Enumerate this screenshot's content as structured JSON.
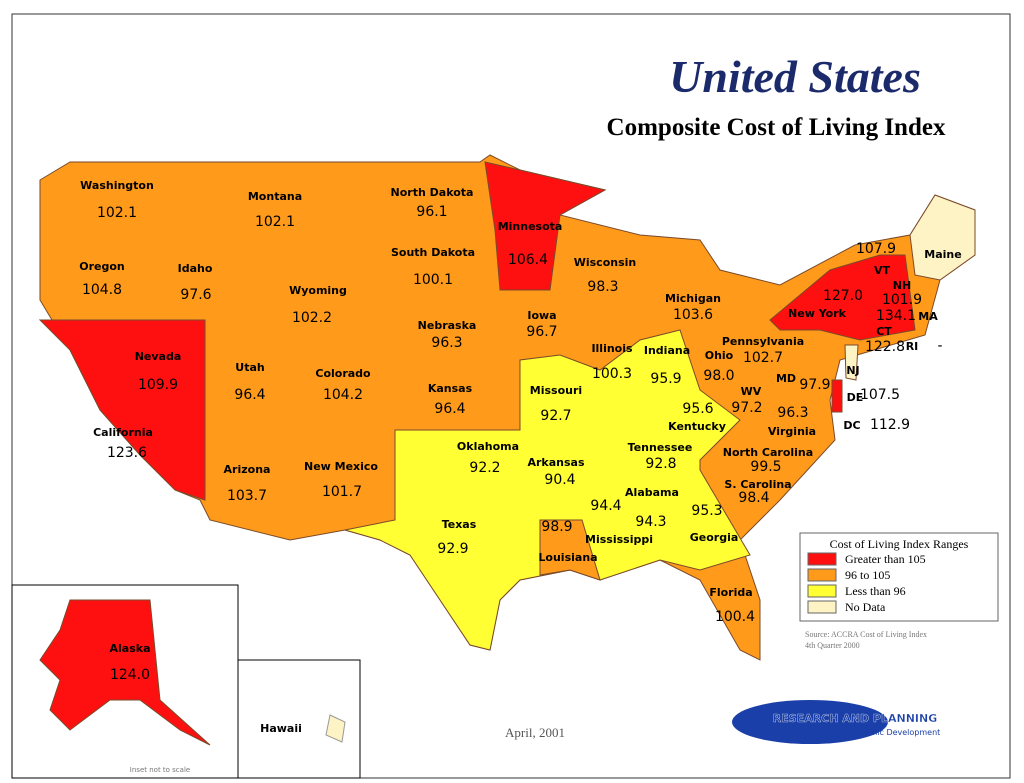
{
  "title": "United States",
  "subtitle": "Composite Cost of Living Index",
  "states": [
    {
      "label": "Washington",
      "value": "102.1"
    },
    {
      "label": "Montana",
      "value": "102.1"
    },
    {
      "label": "North Dakota",
      "value": "96.1"
    },
    {
      "label": "Minnesota",
      "value": "106.4"
    },
    {
      "label": "Oregon",
      "value": "104.8"
    },
    {
      "label": "Idaho",
      "value": "97.6"
    },
    {
      "label": "South Dakota",
      "value": "100.1"
    },
    {
      "label": "Wisconsin",
      "value": "98.3"
    },
    {
      "label": "Wyoming",
      "value": "102.2"
    },
    {
      "label": "Iowa",
      "value": "96.7"
    },
    {
      "label": "Michigan",
      "value": "103.6"
    },
    {
      "label": "Nebraska",
      "value": "96.3"
    },
    {
      "label": "Nevada",
      "value": "109.9"
    },
    {
      "label": "Utah",
      "value": "96.4"
    },
    {
      "label": "Colorado",
      "value": "104.2"
    },
    {
      "label": "Kansas",
      "value": "96.4"
    },
    {
      "label": "Illinois",
      "value": "100.3"
    },
    {
      "label": "Indiana",
      "value": "95.9"
    },
    {
      "label": "Ohio",
      "value": "98.0"
    },
    {
      "label": "Pennsylvania",
      "value": "102.7"
    },
    {
      "label": "New York",
      "value": "127.0"
    },
    {
      "label": "California",
      "value": "123.6"
    },
    {
      "label": "Missouri",
      "value": "92.7"
    },
    {
      "label": "Kentucky",
      "value": "95.6"
    },
    {
      "label": "WV",
      "value": "97.2"
    },
    {
      "label": "MD",
      "value": "97.9"
    },
    {
      "label": "Virginia",
      "value": "96.3"
    },
    {
      "label": "Oklahoma",
      "value": "92.2"
    },
    {
      "label": "Arkansas",
      "value": "90.4"
    },
    {
      "label": "Tennessee",
      "value": "92.8"
    },
    {
      "label": "North Carolina",
      "value": "99.5"
    },
    {
      "label": "Arizona",
      "value": "103.7"
    },
    {
      "label": "New Mexico",
      "value": "101.7"
    },
    {
      "label": "Texas",
      "value": "92.9"
    },
    {
      "label": "Louisiana",
      "value": "98.9"
    },
    {
      "label": "Mississippi",
      "value": "94.4"
    },
    {
      "label": "Alabama",
      "value": "94.3"
    },
    {
      "label": "Georgia",
      "value": "95.3"
    },
    {
      "label": "S. Carolina",
      "value": "98.4"
    },
    {
      "label": "Florida",
      "value": "100.4"
    },
    {
      "label": "Alaska",
      "value": "124.0"
    },
    {
      "label": "VT",
      "value": "107.9"
    },
    {
      "label": "NH",
      "value": "101.9"
    },
    {
      "label": "MA",
      "value": "134.1"
    },
    {
      "label": "CT",
      "value": "122.8"
    },
    {
      "label": "RI",
      "value": "-"
    },
    {
      "label": "DE",
      "value": "107.5"
    },
    {
      "label": "DC",
      "value": "112.9"
    },
    {
      "label": "Hawaii"
    },
    {
      "label": "Maine"
    },
    {
      "label": "NJ"
    }
  ],
  "legend": {
    "title": "Cost of Living Index Ranges",
    "items": [
      {
        "label": "Greater than 105",
        "color": "#ff1010"
      },
      {
        "label": "96 to 105",
        "color": "#ff9a1a"
      },
      {
        "label": "Less than 96",
        "color": "#ffff33"
      },
      {
        "label": "No Data",
        "color": "#fdf3c4"
      }
    ]
  },
  "source": [
    "Source: ACCRA Cost of Living Index",
    "4th Quarter 2000"
  ],
  "date": "April, 2001",
  "logo": [
    "RESEARCH AND PLANNING",
    "Missouri Economic Development"
  ],
  "inset_note": "Inset not to scale"
}
